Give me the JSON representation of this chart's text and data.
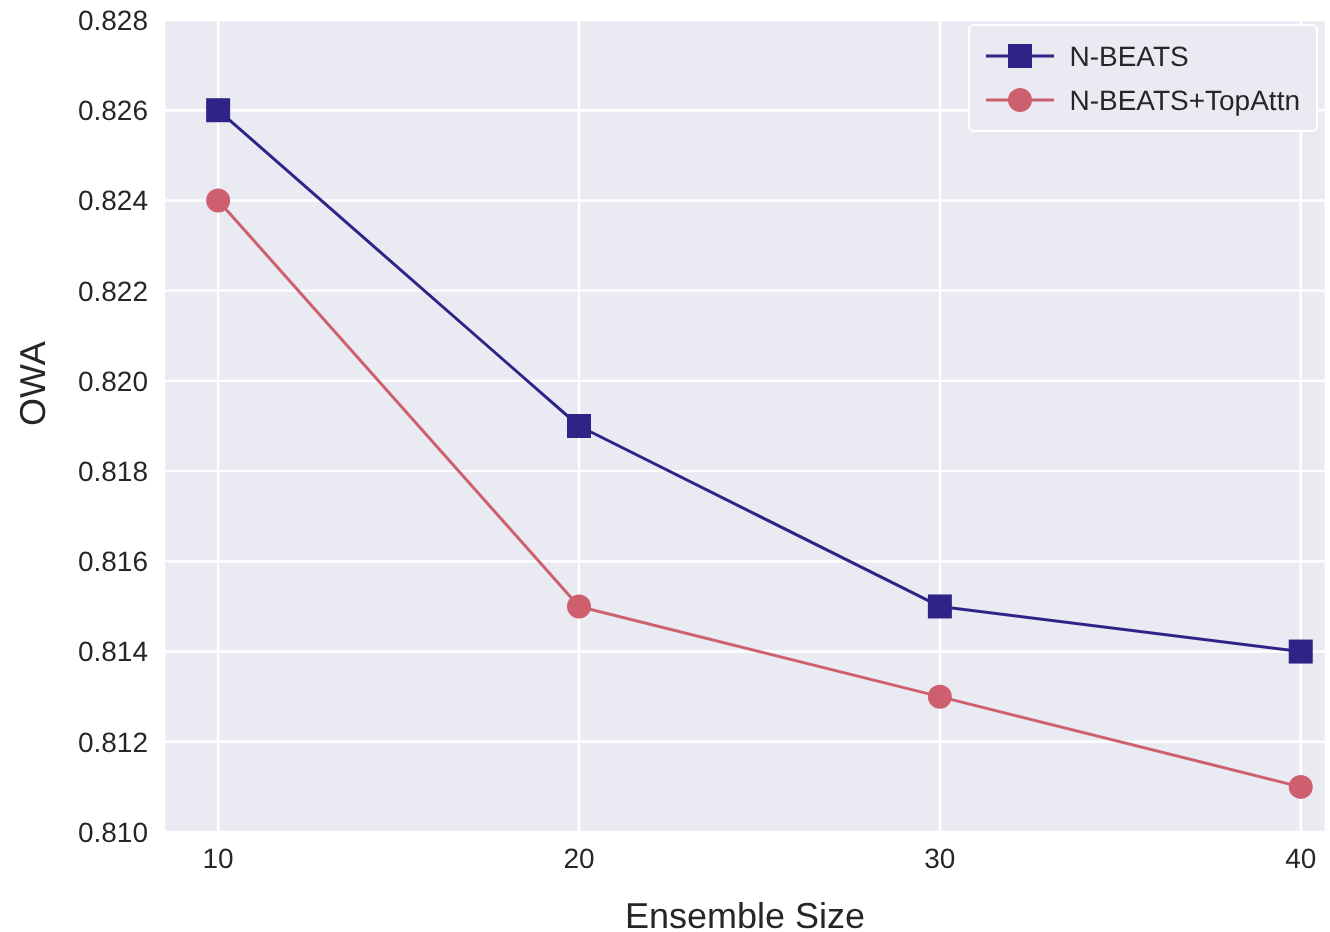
{
  "chart_data": {
    "type": "line",
    "xlabel": "Ensemble Size",
    "ylabel": "OWA",
    "x": [
      10,
      20,
      30,
      40
    ],
    "series": [
      {
        "name": "N-BEATS",
        "color": "#2f2388",
        "values": [
          0.826,
          0.819,
          0.815,
          0.814
        ],
        "marker": "square"
      },
      {
        "name": "N-BEATS+TopAttn",
        "color": "#cd5f6e",
        "values": [
          0.824,
          0.815,
          0.813,
          0.811
        ],
        "marker": "circle"
      }
    ],
    "xlim": [
      8.5,
      40.7
    ],
    "xticks": [
      10,
      20,
      30,
      40
    ],
    "ylim": [
      0.81,
      0.828
    ],
    "yticks": [
      {
        "value": 0.81,
        "label": "0.810"
      },
      0.812,
      0.814,
      0.816,
      0.818,
      {
        "value": 0.82,
        "label": "0.820"
      },
      0.822,
      0.824,
      0.826,
      0.828
    ],
    "grid": true,
    "legend": "top right",
    "line_style": "solid"
  }
}
